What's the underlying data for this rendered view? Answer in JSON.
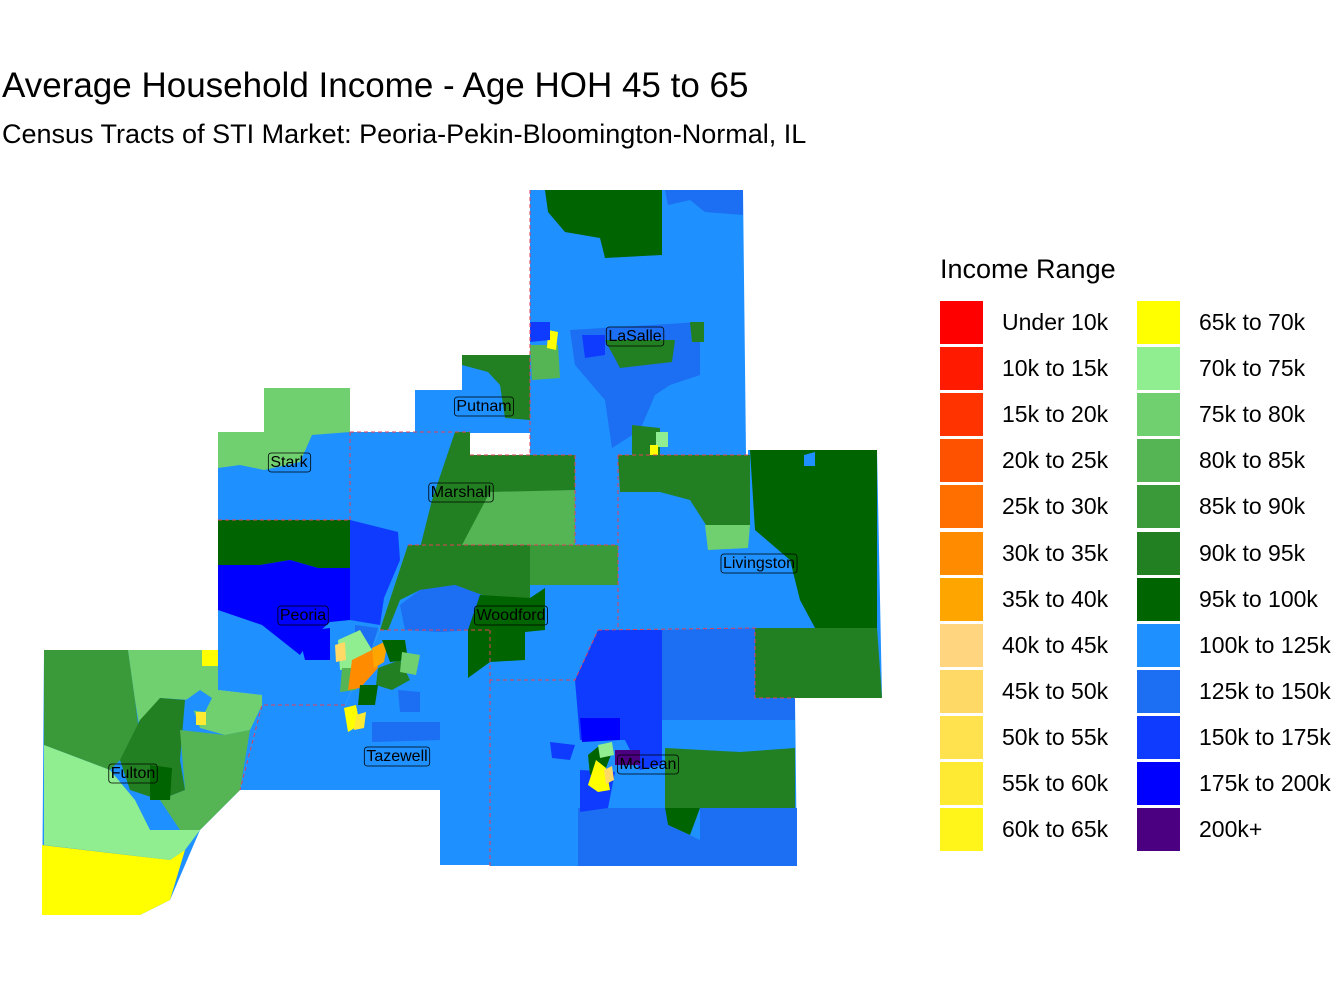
{
  "title": "Average Household Income - Age HOH 45 to 65",
  "subtitle": "Census Tracts of STI Market: Peoria-Pekin-Bloomington-Normal, IL",
  "legend": {
    "title": "Income Range",
    "items": [
      {
        "label": "Under 10k",
        "color": "#FF0000"
      },
      {
        "label": "10k to 15k",
        "color": "#FF1A00"
      },
      {
        "label": "15k to 20k",
        "color": "#FF3300"
      },
      {
        "label": "20k to 25k",
        "color": "#FF5200"
      },
      {
        "label": "25k to 30k",
        "color": "#FF6F00"
      },
      {
        "label": "30k to 35k",
        "color": "#FF8C00"
      },
      {
        "label": "35k to 40k",
        "color": "#FFA500"
      },
      {
        "label": "40k to 45k",
        "color": "#FFD580"
      },
      {
        "label": "45k to 50k",
        "color": "#FFD966"
      },
      {
        "label": "50k to 55k",
        "color": "#FFE24D"
      },
      {
        "label": "55k to 60k",
        "color": "#FFEA33"
      },
      {
        "label": "60k to 65k",
        "color": "#FFF51A"
      },
      {
        "label": "65k to 70k",
        "color": "#FFFF00"
      },
      {
        "label": "70k to 75k",
        "color": "#90EE90"
      },
      {
        "label": "75k to 80k",
        "color": "#70D070"
      },
      {
        "label": "80k to 85k",
        "color": "#55B555"
      },
      {
        "label": "85k to 90k",
        "color": "#3A9A3A"
      },
      {
        "label": "90k to 95k",
        "color": "#228022"
      },
      {
        "label": "95k to 100k",
        "color": "#006400"
      },
      {
        "label": "100k to 125k",
        "color": "#1E90FF"
      },
      {
        "label": "125k to 150k",
        "color": "#1C6EF2"
      },
      {
        "label": "150k to 175k",
        "color": "#0F3BFF"
      },
      {
        "label": "175k to 200k",
        "color": "#0000FF"
      },
      {
        "label": "200k+",
        "color": "#4B0082"
      }
    ]
  },
  "counties": [
    {
      "name": "LaSalle"
    },
    {
      "name": "Putnam"
    },
    {
      "name": "Stark"
    },
    {
      "name": "Marshall"
    },
    {
      "name": "Livingston"
    },
    {
      "name": "Peoria"
    },
    {
      "name": "Woodford"
    },
    {
      "name": "Tazewell"
    },
    {
      "name": "McLean"
    },
    {
      "name": "Fulton"
    }
  ]
}
